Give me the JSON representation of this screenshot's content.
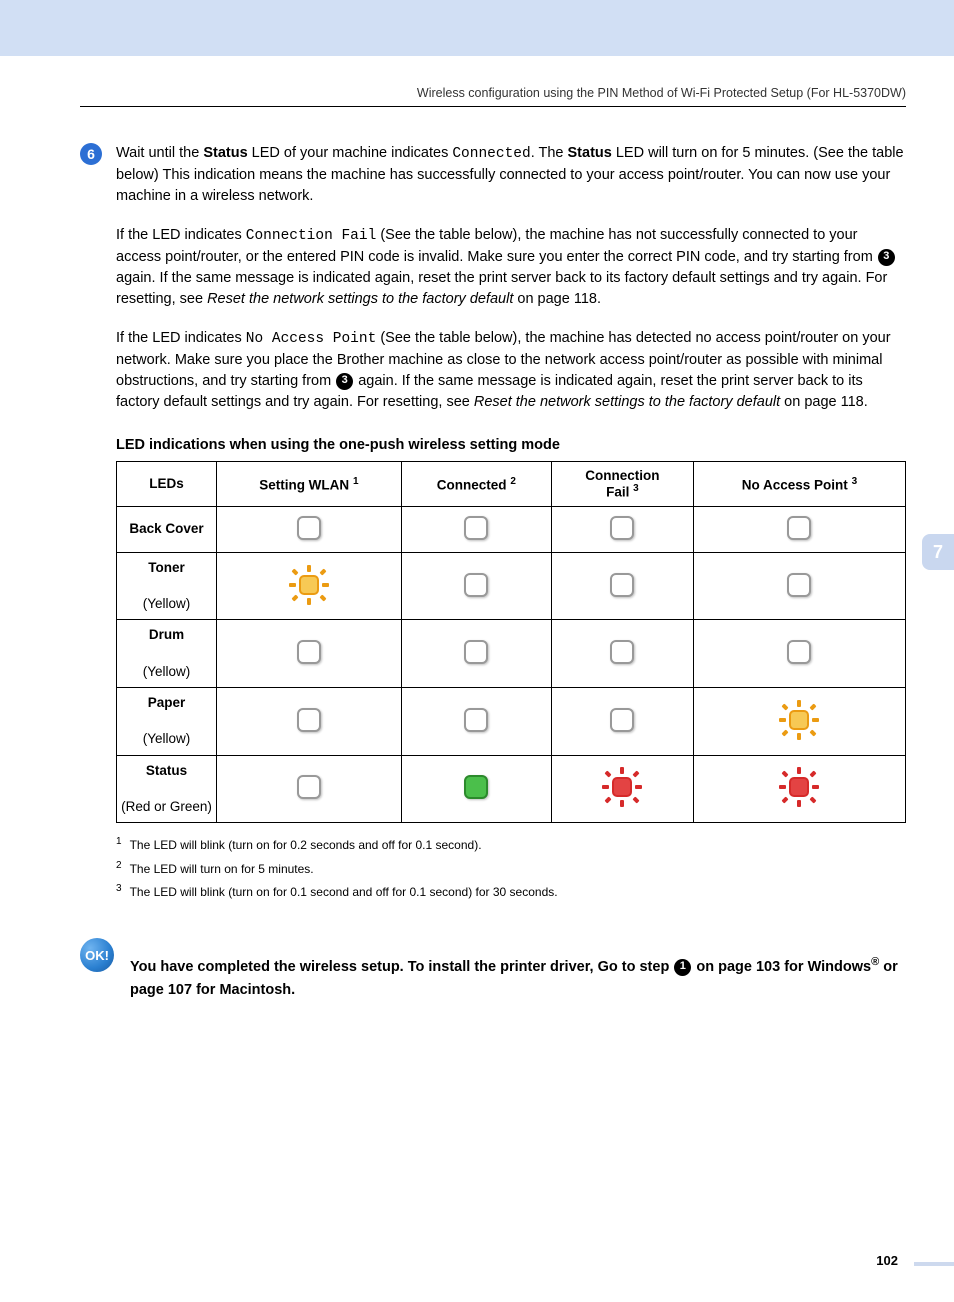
{
  "header": {
    "text": "Wireless configuration using the PIN Method of Wi-Fi Protected Setup (For HL-5370DW)"
  },
  "side_tab": "7",
  "step": {
    "number": "6",
    "para1_a": "Wait until the ",
    "para1_b_status": "Status",
    "para1_c": " LED of your machine indicates ",
    "para1_d_mono": "Connected",
    "para1_e": ". The ",
    "para1_f_status": "Status",
    "para1_g": " LED will turn on for 5 minutes. (See the table below) This indication means the machine has successfully connected to your access point/router. You can now use your machine in a wireless network.",
    "para2_a": "If the LED indicates ",
    "para2_b_mono": "Connection Fail",
    "para2_c": " (See the table below), the machine has not successfully connected to your access point/router, or the entered PIN code is invalid. Make sure you enter the correct PIN code, and try starting from ",
    "para2_ref": "3",
    "para2_d": " again. If the same message is indicated again, reset the print server back to its factory default settings and try again. For resetting, see ",
    "para2_e_italic": "Reset the network settings to the factory default",
    "para2_f": " on page 118.",
    "para3_a": "If the LED indicates ",
    "para3_b_mono": "No Access Point",
    "para3_c": " (See the table below), the machine has detected no access point/router on your network. Make sure you place the Brother machine as close to the network access point/router as possible with minimal obstructions, and try starting from ",
    "para3_ref": "3",
    "para3_d": " again. If the same message is indicated again, reset the print server back to its factory default settings and try again. For resetting, see ",
    "para3_e_italic": "Reset the network settings to the factory default",
    "para3_f": " on page 118."
  },
  "table": {
    "title": "LED indications when using the one-push wireless setting mode",
    "headers": {
      "c0": "LEDs",
      "c1": "Setting WLAN",
      "c1_sup": "1",
      "c2": "Connected",
      "c2_sup": "2",
      "c3_a": "Connection",
      "c3_b": "Fail",
      "c3_sup": "3",
      "c4": "No Access Point",
      "c4_sup": "3"
    },
    "rows": [
      {
        "label_b": "Back Cover",
        "label_sub": "",
        "cells": [
          "off",
          "off",
          "off",
          "off"
        ]
      },
      {
        "label_b": "Toner",
        "label_sub": "(Yellow)",
        "cells": [
          "glow-yellow",
          "off",
          "off",
          "off"
        ]
      },
      {
        "label_b": "Drum",
        "label_sub": "(Yellow)",
        "cells": [
          "off",
          "off",
          "off",
          "off"
        ]
      },
      {
        "label_b": "Paper",
        "label_sub": "(Yellow)",
        "cells": [
          "off",
          "off",
          "off",
          "glow-yellow"
        ]
      },
      {
        "label_b": "Status",
        "label_sub": "(Red or Green)",
        "cells": [
          "off",
          "green",
          "glow-red",
          "glow-red"
        ]
      }
    ]
  },
  "footnotes": {
    "f1_num": "1",
    "f1": "The LED will blink (turn on for 0.2 seconds and off for 0.1 second).",
    "f2_num": "2",
    "f2": "The LED will turn on for 5 minutes.",
    "f3_num": "3",
    "f3": "The LED will blink (turn on for 0.1 second and off for 0.1 second) for 30 seconds."
  },
  "ok": {
    "badge": "OK!",
    "text_a": "You have completed the wireless setup. To install the printer driver, Go to step ",
    "ref": "1",
    "text_b": " on page 103 for Windows",
    "reg": "®",
    "text_c": " or page 107 for Macintosh."
  },
  "page_number": "102"
}
